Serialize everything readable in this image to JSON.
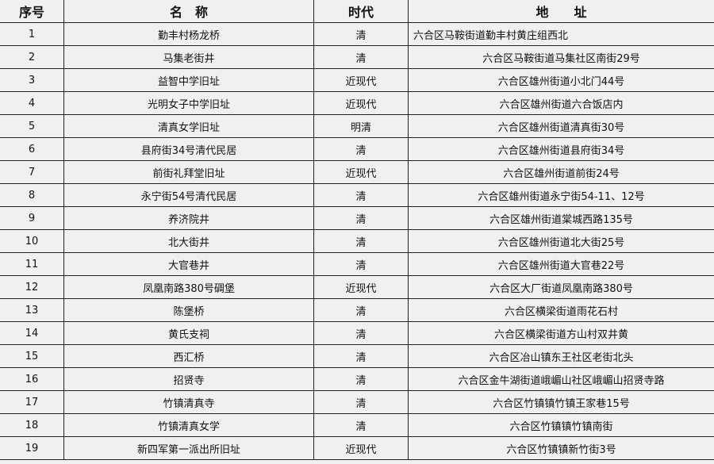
{
  "headers": {
    "index": "序号",
    "name": "名　称",
    "era": "时代",
    "address": "地　　址"
  },
  "rows": [
    {
      "index": "1",
      "name": "勤丰村杨龙桥",
      "era": "清",
      "address": "六合区马鞍街道勤丰村黄庄组西北"
    },
    {
      "index": "2",
      "name": "马集老街井",
      "era": "清",
      "address": "六合区马鞍街道马集社区南街29号"
    },
    {
      "index": "3",
      "name": "益智中学旧址",
      "era": "近现代",
      "address": "六合区雄州街道小北门44号"
    },
    {
      "index": "4",
      "name": "光明女子中学旧址",
      "era": "近现代",
      "address": "六合区雄州街道六合饭店内"
    },
    {
      "index": "5",
      "name": "清真女学旧址",
      "era": "明清",
      "address": "六合区雄州街道清真街30号"
    },
    {
      "index": "6",
      "name": "县府街34号清代民居",
      "era": "清",
      "address": "六合区雄州街道县府街34号"
    },
    {
      "index": "7",
      "name": "前街礼拜堂旧址",
      "era": "近现代",
      "address": "六合区雄州街道前街24号"
    },
    {
      "index": "8",
      "name": "永宁街54号清代民居",
      "era": "清",
      "address": "六合区雄州街道永宁街54-11、12号"
    },
    {
      "index": "9",
      "name": "养济院井",
      "era": "清",
      "address": "六合区雄州街道棠城西路135号"
    },
    {
      "index": "10",
      "name": "北大街井",
      "era": "清",
      "address": "六合区雄州街道北大街25号"
    },
    {
      "index": "11",
      "name": "大官巷井",
      "era": "清",
      "address": "六合区雄州街道大官巷22号"
    },
    {
      "index": "12",
      "name": "凤凰南路380号碉堡",
      "era": "近现代",
      "address": "六合区大厂街道凤凰南路380号"
    },
    {
      "index": "13",
      "name": "陈堡桥",
      "era": "清",
      "address": "六合区横梁街道雨花石村"
    },
    {
      "index": "14",
      "name": "黄氏支祠",
      "era": "清",
      "address": "六合区横梁街道方山村双井黄"
    },
    {
      "index": "15",
      "name": "西汇桥",
      "era": "清",
      "address": "六合区冶山镇东王社区老街北头"
    },
    {
      "index": "16",
      "name": "招贤寺",
      "era": "清",
      "address": "六合区金牛湖街道峨嵋山社区峨嵋山招贤寺路"
    },
    {
      "index": "17",
      "name": "竹镇清真寺",
      "era": "清",
      "address": "六合区竹镇镇竹镇王家巷15号"
    },
    {
      "index": "18",
      "name": "竹镇清真女学",
      "era": "清",
      "address": "六合区竹镇镇竹镇南街"
    },
    {
      "index": "19",
      "name": "新四军第一派出所旧址",
      "era": "近现代",
      "address": "六合区竹镇镇新竹街3号"
    }
  ]
}
